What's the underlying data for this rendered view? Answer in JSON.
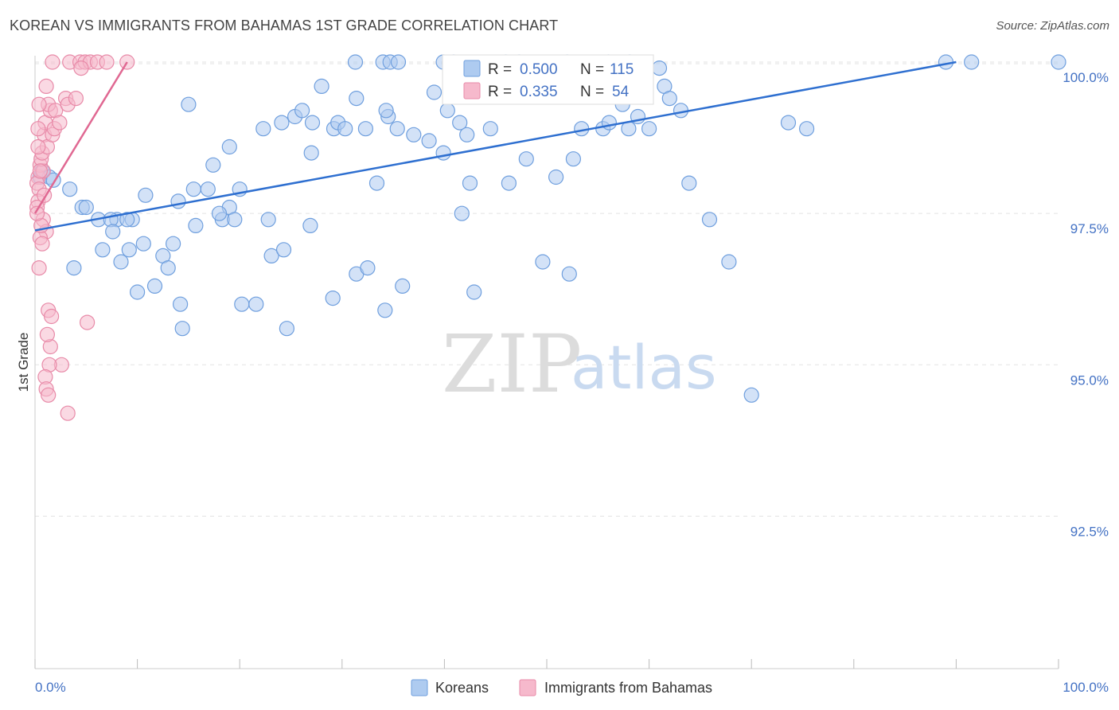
{
  "title": "KOREAN VS IMMIGRANTS FROM BAHAMAS 1ST GRADE CORRELATION CHART",
  "source": "Source: ZipAtlas.com",
  "watermark": {
    "zip": "ZIP",
    "atlas": "atlas"
  },
  "colors": {
    "koreans_fill": "#aecbf0",
    "koreans_stroke": "#6f9fde",
    "koreans_line": "#2e6fd0",
    "bahamas_fill": "#f6b9cc",
    "bahamas_stroke": "#e88aa8",
    "bahamas_line": "#e06892",
    "tick_text": "#4472c4",
    "grid": "#e3e3e3"
  },
  "legend_box": {
    "row1": {
      "r_label": "R =",
      "r_value": "0.500",
      "n_label": "N =",
      "n_value": "115"
    },
    "row2": {
      "r_label": "R =",
      "r_value": "0.335",
      "n_label": "N =",
      "n_value": "54"
    }
  },
  "chart_data": {
    "type": "scatter",
    "title": "KOREAN VS IMMIGRANTS FROM BAHAMAS 1ST GRADE CORRELATION CHART",
    "xlabel": "",
    "ylabel": "1st Grade",
    "xlim": [
      0,
      100
    ],
    "ylim": [
      90.0,
      100.2
    ],
    "x_tick_labels": [
      "0.0%",
      "100.0%"
    ],
    "y_ticks": [
      92.5,
      95.0,
      97.5,
      100.0
    ],
    "y_tick_labels": [
      "92.5%",
      "95.0%",
      "97.5%",
      "100.0%"
    ],
    "grid": true,
    "legend_placement": "bottom-center",
    "series": [
      {
        "name": "Koreans",
        "r": 0.5,
        "n": 115,
        "trend": {
          "x": [
            0,
            90
          ],
          "y": [
            97.22,
            100.0
          ]
        },
        "points": [
          [
            0.5,
            98.1
          ],
          [
            0.7,
            98.2
          ],
          [
            1.4,
            98.1
          ],
          [
            1.8,
            98.05
          ],
          [
            3.4,
            97.9
          ],
          [
            4.6,
            97.6
          ],
          [
            5.0,
            97.6
          ],
          [
            6.2,
            97.4
          ],
          [
            6.6,
            96.9
          ],
          [
            8.0,
            97.4
          ],
          [
            8.4,
            96.7
          ],
          [
            9.5,
            97.4
          ],
          [
            3.8,
            96.6
          ],
          [
            7.4,
            97.4
          ],
          [
            9.0,
            97.4
          ],
          [
            7.6,
            97.2
          ],
          [
            10.6,
            97.0
          ],
          [
            9.2,
            96.9
          ],
          [
            11.7,
            96.3
          ],
          [
            10.0,
            96.2
          ],
          [
            12.5,
            96.8
          ],
          [
            13.0,
            96.6
          ],
          [
            13.5,
            97.0
          ],
          [
            14.4,
            95.6
          ],
          [
            14.2,
            96.0
          ],
          [
            10.8,
            97.8
          ],
          [
            14.0,
            97.7
          ],
          [
            15.5,
            97.9
          ],
          [
            15.7,
            97.3
          ],
          [
            16.9,
            97.9
          ],
          [
            17.4,
            98.3
          ],
          [
            18.3,
            97.4
          ],
          [
            19.0,
            97.6
          ],
          [
            19.5,
            97.4
          ],
          [
            19.0,
            98.6
          ],
          [
            20.2,
            96.0
          ],
          [
            21.6,
            96.0
          ],
          [
            23.1,
            96.8
          ],
          [
            24.6,
            95.6
          ],
          [
            22.8,
            97.4
          ],
          [
            15.0,
            99.3
          ],
          [
            22.3,
            98.9
          ],
          [
            24.1,
            99.0
          ],
          [
            25.4,
            99.1
          ],
          [
            26.1,
            99.2
          ],
          [
            27.1,
            99.0
          ],
          [
            28.0,
            99.6
          ],
          [
            29.2,
            98.9
          ],
          [
            29.6,
            99.0
          ],
          [
            30.3,
            98.9
          ],
          [
            31.4,
            99.4
          ],
          [
            32.3,
            98.9
          ],
          [
            35.4,
            98.9
          ],
          [
            26.9,
            97.3
          ],
          [
            24.3,
            96.9
          ],
          [
            29.1,
            96.1
          ],
          [
            31.4,
            96.5
          ],
          [
            32.5,
            96.6
          ],
          [
            33.4,
            98.0
          ],
          [
            34.5,
            99.1
          ],
          [
            35.9,
            96.3
          ],
          [
            39.9,
            98.5
          ],
          [
            37.0,
            98.8
          ],
          [
            38.5,
            98.7
          ],
          [
            39.0,
            99.5
          ],
          [
            34.3,
            99.2
          ],
          [
            34.2,
            95.9
          ],
          [
            40.3,
            99.2
          ],
          [
            41.5,
            99.0
          ],
          [
            42.2,
            98.8
          ],
          [
            42.5,
            98.0
          ],
          [
            42.9,
            96.2
          ],
          [
            41.7,
            97.5
          ],
          [
            44.5,
            98.9
          ],
          [
            46.3,
            98.0
          ],
          [
            48.0,
            98.4
          ],
          [
            49.6,
            96.7
          ],
          [
            50.9,
            98.1
          ],
          [
            52.2,
            96.5
          ],
          [
            48.2,
            99.6
          ],
          [
            52.6,
            98.4
          ],
          [
            53.4,
            98.9
          ],
          [
            55.5,
            98.9
          ],
          [
            56.1,
            99.0
          ],
          [
            57.4,
            99.3
          ],
          [
            58.0,
            98.9
          ],
          [
            58.9,
            99.1
          ],
          [
            60.0,
            98.9
          ],
          [
            61.5,
            99.6
          ],
          [
            62.0,
            99.4
          ],
          [
            63.1,
            99.2
          ],
          [
            63.9,
            98.0
          ],
          [
            65.9,
            97.4
          ],
          [
            67.8,
            96.7
          ],
          [
            70.0,
            94.5
          ],
          [
            73.6,
            99.0
          ],
          [
            75.4,
            98.9
          ],
          [
            31.3,
            100.0
          ],
          [
            34.0,
            100.0
          ],
          [
            34.7,
            100.0
          ],
          [
            35.5,
            100.0
          ],
          [
            39.9,
            100.0
          ],
          [
            40.9,
            100.0
          ],
          [
            46.0,
            100.0
          ],
          [
            47.3,
            100.0
          ],
          [
            52.0,
            100.0
          ],
          [
            58.1,
            100.0
          ],
          [
            56.0,
            100.0
          ],
          [
            89.0,
            100.0
          ],
          [
            91.5,
            100.0
          ],
          [
            100.0,
            100.0
          ],
          [
            61.0,
            99.9
          ],
          [
            27.0,
            98.5
          ],
          [
            20.0,
            97.9
          ],
          [
            18.0,
            97.5
          ]
        ]
      },
      {
        "name": "Immigrants from Bahamas",
        "r": 0.335,
        "n": 54,
        "trend": {
          "x": [
            0,
            9.0
          ],
          "y": [
            97.5,
            100.0
          ]
        },
        "points": [
          [
            0.3,
            98.1
          ],
          [
            0.5,
            98.3
          ],
          [
            0.8,
            98.2
          ],
          [
            0.6,
            98.4
          ],
          [
            0.2,
            98.0
          ],
          [
            0.4,
            97.9
          ],
          [
            0.3,
            97.7
          ],
          [
            0.7,
            98.5
          ],
          [
            0.9,
            98.8
          ],
          [
            1.2,
            98.6
          ],
          [
            1.0,
            99.0
          ],
          [
            1.5,
            99.2
          ],
          [
            1.3,
            99.3
          ],
          [
            2.0,
            99.2
          ],
          [
            0.4,
            99.3
          ],
          [
            1.1,
            99.6
          ],
          [
            3.0,
            99.4
          ],
          [
            3.2,
            99.3
          ],
          [
            4.0,
            99.4
          ],
          [
            1.7,
            98.8
          ],
          [
            0.3,
            98.6
          ],
          [
            0.2,
            97.6
          ],
          [
            0.8,
            97.4
          ],
          [
            1.1,
            97.2
          ],
          [
            0.5,
            97.1
          ],
          [
            0.7,
            97.0
          ],
          [
            0.4,
            96.6
          ],
          [
            1.3,
            95.9
          ],
          [
            1.6,
            95.8
          ],
          [
            1.5,
            95.3
          ],
          [
            1.2,
            95.5
          ],
          [
            2.6,
            95.0
          ],
          [
            1.4,
            95.0
          ],
          [
            1.0,
            94.8
          ],
          [
            1.1,
            94.6
          ],
          [
            1.3,
            94.5
          ],
          [
            3.2,
            94.2
          ],
          [
            5.1,
            95.7
          ],
          [
            1.7,
            100.0
          ],
          [
            3.4,
            100.0
          ],
          [
            4.4,
            100.0
          ],
          [
            4.9,
            100.0
          ],
          [
            5.4,
            100.0
          ],
          [
            6.1,
            100.0
          ],
          [
            7.0,
            100.0
          ],
          [
            9.0,
            100.0
          ],
          [
            4.5,
            99.9
          ],
          [
            0.6,
            97.3
          ],
          [
            0.9,
            97.8
          ],
          [
            1.9,
            98.9
          ],
          [
            0.3,
            98.9
          ],
          [
            0.5,
            98.2
          ],
          [
            2.4,
            99.0
          ],
          [
            0.2,
            97.5
          ]
        ]
      }
    ]
  },
  "bottom_legend": [
    "Koreans",
    "Immigrants from Bahamas"
  ]
}
